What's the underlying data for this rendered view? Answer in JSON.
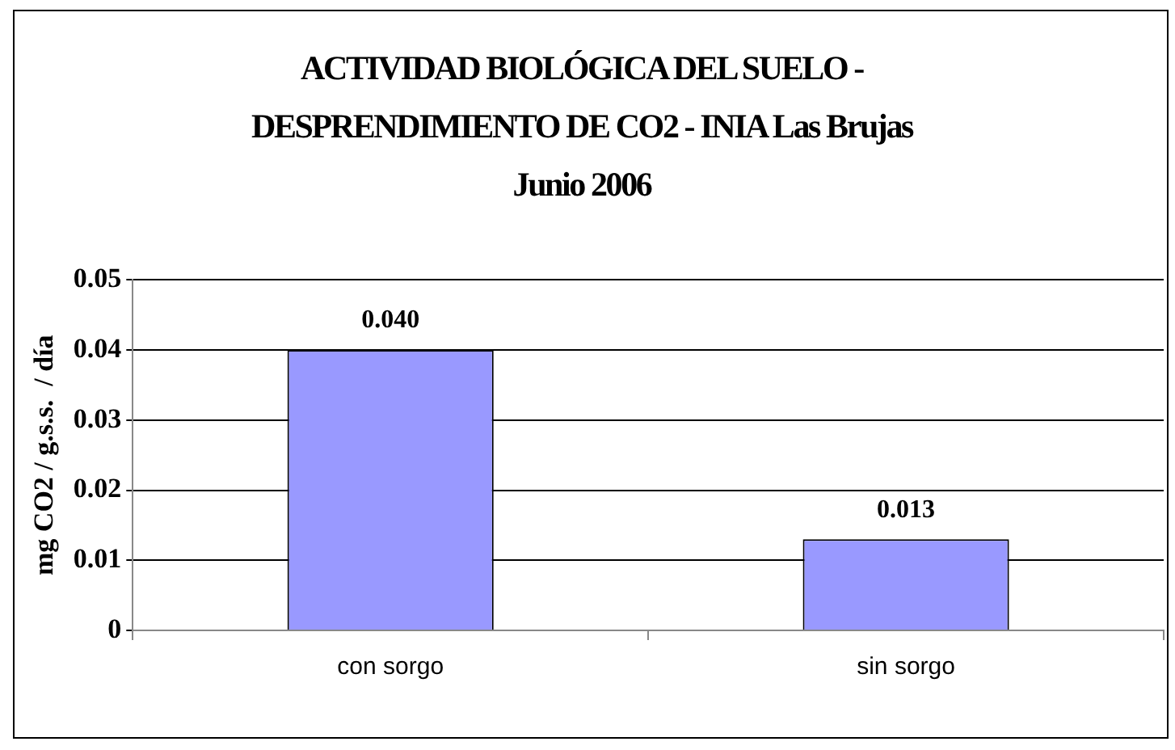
{
  "chart_data": {
    "type": "bar",
    "title": "ACTIVIDAD BIOLÓGICA DEL SUELO - DESPRENDIMIENTO DE CO2 - INIA Las Brujas Junio 2006",
    "ylabel": "mg CO2 / g.s.s.  / día",
    "categories": [
      "con sorgo",
      "sin sorgo"
    ],
    "values": [
      0.04,
      0.013
    ],
    "value_labels": [
      "0.040",
      "0.013"
    ],
    "color": "#9999ff",
    "ylim": [
      0,
      0.05
    ],
    "yticks": [
      0,
      0.01,
      0.02,
      0.03,
      0.04,
      0.05
    ],
    "grid": "y",
    "legend": false
  }
}
